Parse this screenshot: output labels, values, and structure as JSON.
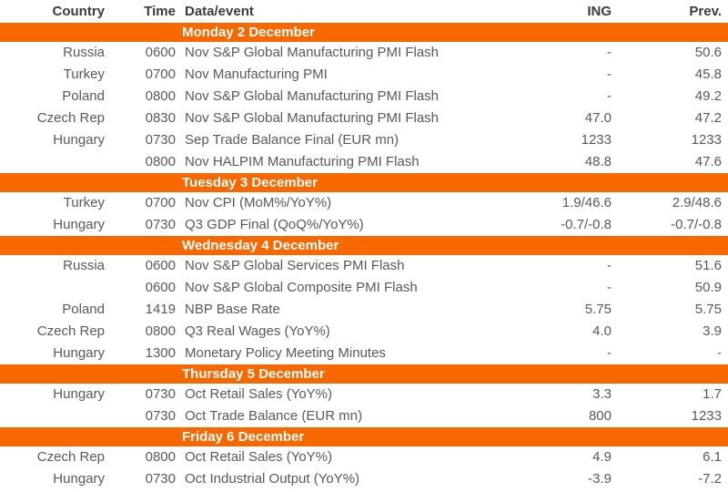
{
  "colors": {
    "banner_bg": "#f86800",
    "banner_text": "#ffffff",
    "body_text": "#595958",
    "header_text": "#3c3c3b"
  },
  "table": {
    "headers": {
      "country": "Country",
      "time": "Time",
      "event": "Data/event",
      "ing": "ING",
      "prev": "Prev."
    },
    "sections": [
      {
        "title": "Monday 2 December",
        "rows": [
          {
            "country": "Russia",
            "time": "0600",
            "event": "Nov S&P Global Manufacturing PMI Flash",
            "ing": "-",
            "prev": "50.6"
          },
          {
            "country": "Turkey",
            "time": "0700",
            "event": "Nov Manufacturing PMI",
            "ing": "-",
            "prev": "45.8"
          },
          {
            "country": "Poland",
            "time": "0800",
            "event": "Nov S&P Global Manufacturing PMI Flash",
            "ing": "-",
            "prev": "49.2"
          },
          {
            "country": "Czech Rep",
            "time": "0830",
            "event": "Nov S&P Global Manufacturing PMI Flash",
            "ing": "47.0",
            "prev": "47.2"
          },
          {
            "country": "Hungary",
            "time": "0730",
            "event": "Sep Trade Balance Final (EUR mn)",
            "ing": "1233",
            "prev": "1233"
          },
          {
            "country": "",
            "time": "0800",
            "event": "Nov HALPIM Manufacturing PMI Flash",
            "ing": "48.8",
            "prev": "47.6"
          }
        ]
      },
      {
        "title": "Tuesday 3 December",
        "rows": [
          {
            "country": "Turkey",
            "time": "0700",
            "event": "Nov CPI (MoM%/YoY%)",
            "ing": "1.9/46.6",
            "prev": "2.9/48.6"
          },
          {
            "country": "Hungary",
            "time": "0730",
            "event": "Q3 GDP Final (QoQ%/YoY%)",
            "ing": "-0.7/-0.8",
            "prev": "-0.7/-0.8"
          }
        ]
      },
      {
        "title": "Wednesday 4 December",
        "rows": [
          {
            "country": "Russia",
            "time": "0600",
            "event": "Nov S&P Global Services PMI Flash",
            "ing": "-",
            "prev": "51.6"
          },
          {
            "country": "",
            "time": "0600",
            "event": "Nov S&P Global Composite PMI Flash",
            "ing": "-",
            "prev": "50.9"
          },
          {
            "country": "Poland",
            "time": "1419",
            "event": "NBP Base Rate",
            "ing": "5.75",
            "prev": "5.75"
          },
          {
            "country": "Czech Rep",
            "time": "0800",
            "event": "Q3 Real Wages (YoY%)",
            "ing": "4.0",
            "prev": "3.9"
          },
          {
            "country": "Hungary",
            "time": "1300",
            "event": "Monetary Policy Meeting Minutes",
            "ing": "-",
            "prev": "-"
          }
        ]
      },
      {
        "title": "Thursday 5 December",
        "rows": [
          {
            "country": "Hungary",
            "time": "0730",
            "event": "Oct Retail Sales (YoY%)",
            "ing": "3.3",
            "prev": "1.7"
          },
          {
            "country": "",
            "time": "0730",
            "event": "Oct Trade Balance (EUR mn)",
            "ing": "800",
            "prev": "1233"
          }
        ]
      },
      {
        "title": "Friday 6 December",
        "rows": [
          {
            "country": "Czech Rep",
            "time": "0800",
            "event": "Oct Retail Sales (YoY%)",
            "ing": "4.9",
            "prev": "6.1"
          },
          {
            "country": "Hungary",
            "time": "0730",
            "event": "Oct Industrial Output (YoY%)",
            "ing": "-3.9",
            "prev": "-7.2"
          }
        ]
      }
    ]
  }
}
